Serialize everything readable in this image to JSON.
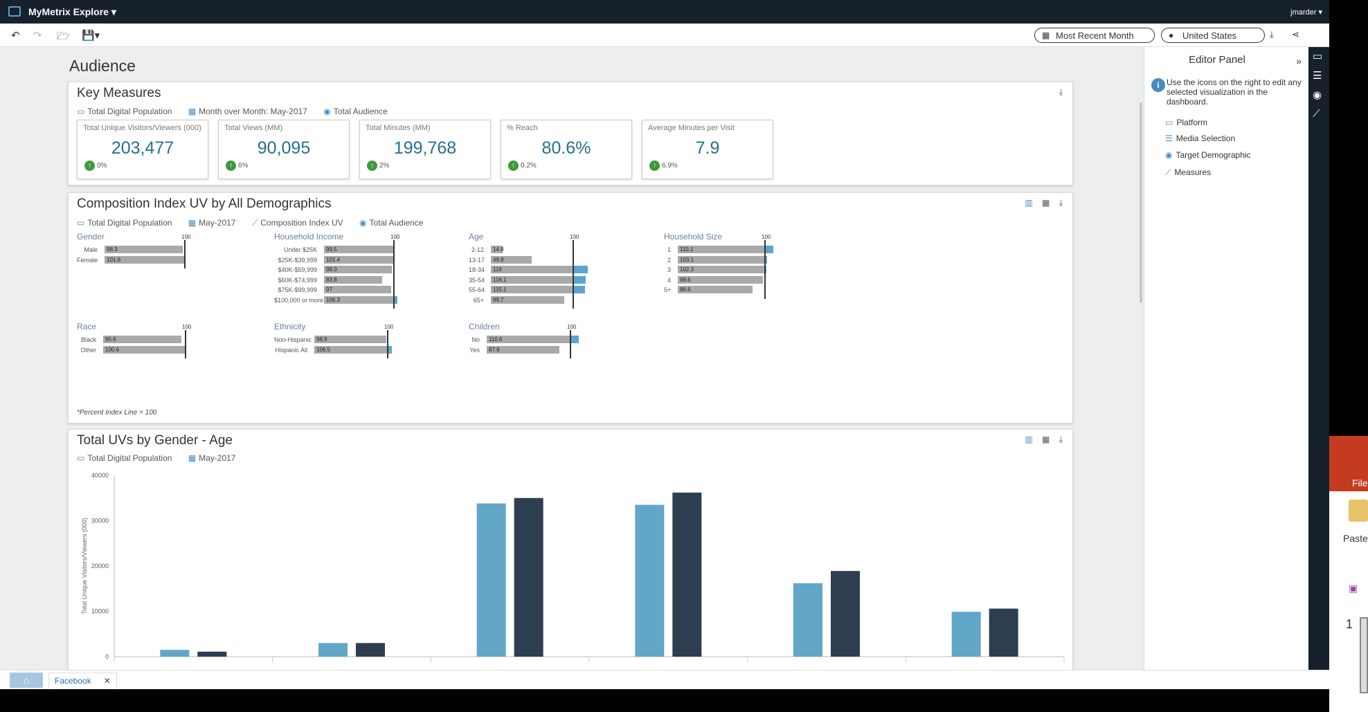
{
  "app": {
    "name": "MyMetrix Explore",
    "user": "jmarder"
  },
  "toolbar": {
    "date_filter": "Most Recent Month",
    "geo_filter": "United States"
  },
  "page": {
    "title": "Audience"
  },
  "key_measures": {
    "title": "Key Measures",
    "filters": [
      "Total Digital Population",
      "Month over Month: May-2017",
      "Total Audience"
    ],
    "metrics": [
      {
        "label": "Total Unique Visitors/Viewers (000)",
        "value": "203,477",
        "change": "0%"
      },
      {
        "label": "Total Views (MM)",
        "value": "90,095",
        "change": "6%"
      },
      {
        "label": "Total Minutes (MM)",
        "value": "199,768",
        "change": "2%"
      },
      {
        "label": "% Reach",
        "value": "80.6%",
        "change": "0.2%"
      },
      {
        "label": "Average Minutes per Visit",
        "value": "7.9",
        "change": "6.9%"
      }
    ]
  },
  "composition": {
    "title": "Composition Index UV by All Demographics",
    "filters": [
      "Total Digital Population",
      "May-2017",
      "Composition Index UV",
      "Total Audience"
    ],
    "ref_label": "100",
    "note": "*Percent Index Line = 100",
    "groups": [
      {
        "title": "Gender",
        "rows": [
          {
            "label": "Male",
            "value": "98.3",
            "v": 98.3
          },
          {
            "label": "Female",
            "value": "101.6",
            "v": 101.6
          }
        ]
      },
      {
        "title": "Household Income",
        "rows": [
          {
            "label": "Under $25K",
            "value": "99.5",
            "v": 99.5
          },
          {
            "label": "$25K-$39,999",
            "value": "101.4",
            "v": 101.4
          },
          {
            "label": "$40K-$59,999",
            "value": "98.3",
            "v": 98.3
          },
          {
            "label": "$60K-$74,999",
            "value": "83.8",
            "v": 83.8
          },
          {
            "label": "$75K-$99,999",
            "value": "97",
            "v": 97
          },
          {
            "label": "$100,000 or more",
            "value": "106.3",
            "v": 106.3
          }
        ]
      },
      {
        "title": "Age",
        "rows": [
          {
            "label": "2-12",
            "value": "14.8",
            "v": 14.8
          },
          {
            "label": "13-17",
            "value": "49.8",
            "v": 49.8
          },
          {
            "label": "18-34",
            "value": "119",
            "v": 119
          },
          {
            "label": "35-54",
            "value": "116.1",
            "v": 116.1
          },
          {
            "label": "55-64",
            "value": "115.1",
            "v": 115.1
          },
          {
            "label": "65+",
            "value": "89.7",
            "v": 89.7
          }
        ]
      },
      {
        "title": "Household Size",
        "rows": [
          {
            "label": "1",
            "value": "110.1",
            "v": 110.1
          },
          {
            "label": "2",
            "value": "103.1",
            "v": 103.1
          },
          {
            "label": "3",
            "value": "102.3",
            "v": 102.3
          },
          {
            "label": "4",
            "value": "98.6",
            "v": 98.6
          },
          {
            "label": "5+",
            "value": "86.6",
            "v": 86.6
          }
        ]
      },
      {
        "title": "Race",
        "rows": [
          {
            "label": "Black",
            "value": "95.6",
            "v": 95.6
          },
          {
            "label": "Other",
            "value": "100.6",
            "v": 100.6
          }
        ]
      },
      {
        "title": "Ethnicity",
        "rows": [
          {
            "label": "Non-Hispanic",
            "value": "98.9",
            "v": 98.9
          },
          {
            "label": "Hispanic All",
            "value": "106.5",
            "v": 106.5
          }
        ]
      },
      {
        "title": "Children",
        "rows": [
          {
            "label": "No",
            "value": "110.6",
            "v": 110.6
          },
          {
            "label": "Yes",
            "value": "87.9",
            "v": 87.9
          }
        ]
      }
    ]
  },
  "uvs_chart": {
    "title": "Total UVs by Gender - Age",
    "filters": [
      "Total Digital Population",
      "May-2017"
    ]
  },
  "chart_data": {
    "type": "bar",
    "title": "Total UVs by Gender - Age",
    "ylabel": "Total Unique Visitors/Viewers (000)",
    "ylim": [
      0,
      40000
    ],
    "yticks": [
      "40000",
      "30000",
      "20000",
      "10000",
      "0"
    ],
    "yticks_values": [
      40000,
      30000,
      20000,
      10000,
      0
    ],
    "category_count": 6,
    "series": [
      {
        "color": "#62a6c8",
        "values": [
          1500,
          3000,
          33800,
          33500,
          16200,
          9900
        ]
      },
      {
        "color": "#2c3e50",
        "values": [
          1100,
          3000,
          35000,
          36200,
          18900,
          10600
        ]
      }
    ]
  },
  "editor": {
    "title": "Editor Panel",
    "help": "Use the icons on the right to edit any selected visualization in the dashboard.",
    "items": [
      "Platform",
      "Media Selection",
      "Target Demographic",
      "Measures"
    ]
  },
  "tabs": {
    "active": "Facebook"
  },
  "overlay": {
    "file_label": "File",
    "paste_label": "Paste",
    "slide_number": "1"
  }
}
